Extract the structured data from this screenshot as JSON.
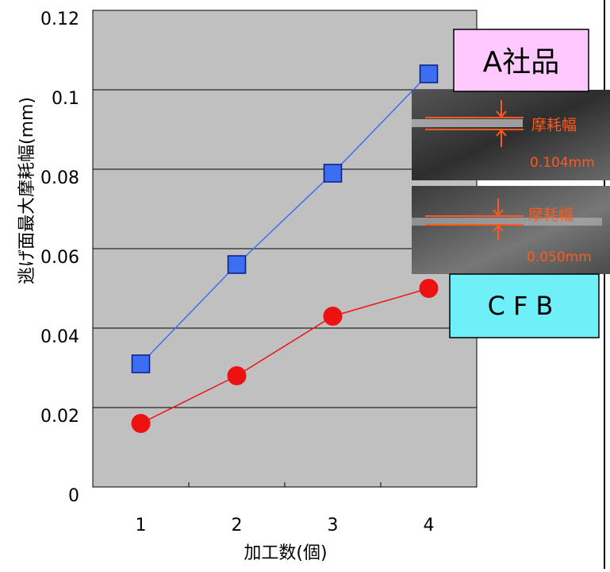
{
  "chart_data": {
    "type": "line",
    "x_label": "加工数(個)",
    "y_label": "逃げ面最大摩耗幅(mm)",
    "categories": [
      "1",
      "2",
      "3",
      "4"
    ],
    "series": [
      {
        "name": "A社品",
        "color": "#3b6ef0",
        "marker": "square",
        "values": [
          0.031,
          0.056,
          0.079,
          0.104
        ]
      },
      {
        "name": "CFB",
        "color": "#ee1111",
        "marker": "circle",
        "values": [
          0.016,
          0.028,
          0.043,
          0.05
        ]
      }
    ],
    "ylim": [
      0,
      0.12
    ],
    "yticks": [
      0,
      0.02,
      0.04,
      0.06,
      0.08,
      0.1,
      0.12
    ],
    "grid": true,
    "annotations": [
      "摩耗幅",
      "0.104mm",
      "摩耗幅",
      "0.050mm"
    ]
  }
}
